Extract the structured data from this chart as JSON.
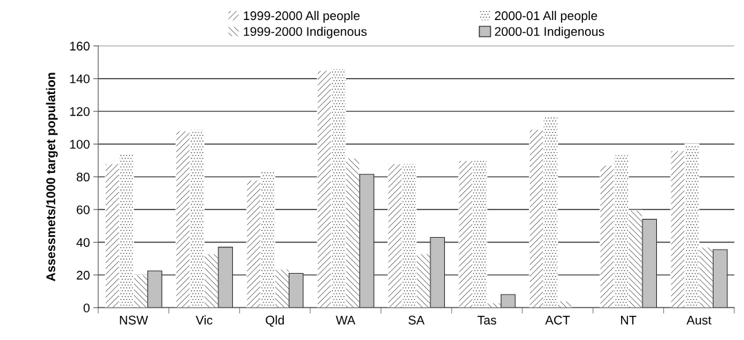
{
  "chart_data": {
    "type": "bar",
    "ylabel": "Assessmets/1000 target population",
    "categories": [
      "NSW",
      "Vic",
      "Qld",
      "WA",
      "SA",
      "Tas",
      "ACT",
      "NT",
      "Aust"
    ],
    "series": [
      {
        "name": "1999-2000 All people",
        "color": "#ffffff",
        "values": [
          88,
          108,
          78,
          145,
          88,
          90,
          109,
          87,
          96
        ]
      },
      {
        "name": "2000-01 All people",
        "color": "#ffffff",
        "values": [
          94,
          109,
          83.5,
          146,
          88,
          90,
          117,
          93.5,
          100
        ]
      },
      {
        "name": "1999-2000 Indigenous",
        "color": "#ffffff",
        "values": [
          20,
          33,
          23.5,
          91.5,
          33,
          3,
          4,
          59.5,
          37
        ]
      },
      {
        "name": "2000-01 Indigenous",
        "color": "#c0c0c0",
        "values": [
          22.5,
          37,
          21,
          81.5,
          43,
          8,
          null,
          54,
          35.5
        ]
      }
    ],
    "ylim": [
      0,
      160
    ],
    "yticks": [
      0,
      20,
      40,
      60,
      80,
      100,
      120,
      140,
      160
    ],
    "grid": "y",
    "legend": "top"
  }
}
